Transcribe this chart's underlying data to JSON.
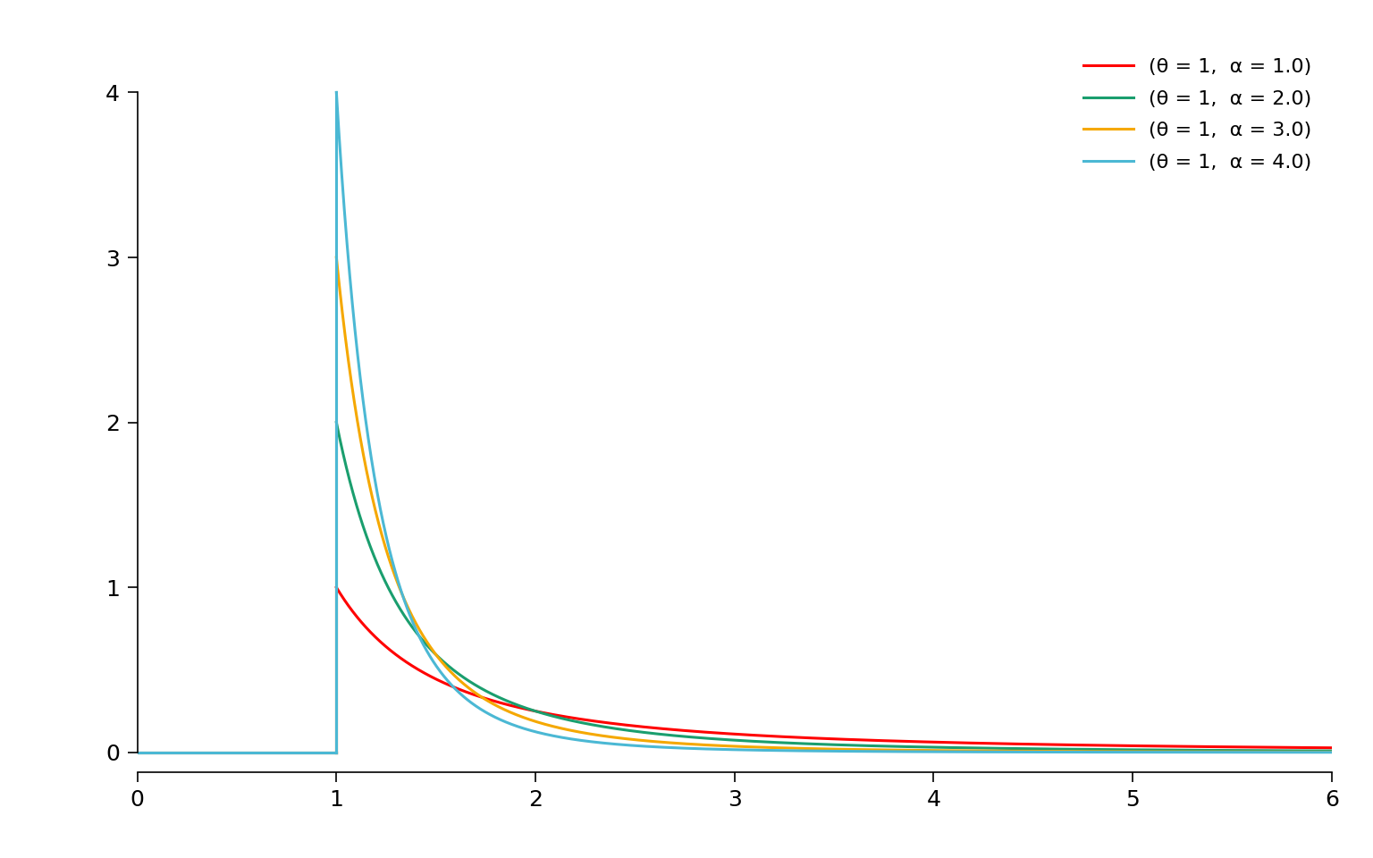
{
  "theta": 1,
  "alphas": [
    1.0,
    2.0,
    3.0,
    4.0
  ],
  "colors": [
    "#FF0000",
    "#1A9E6E",
    "#F5A800",
    "#4BB8D4"
  ],
  "xlim": [
    0,
    6
  ],
  "ylim": [
    -0.12,
    4.3
  ],
  "xticks": [
    0,
    1,
    2,
    3,
    4,
    5,
    6
  ],
  "yticks": [
    0,
    1,
    2,
    3,
    4
  ],
  "legend_labels": [
    "(θ = 1,  α = 1.0)",
    "(θ = 1,  α = 2.0)",
    "(θ = 1,  α = 3.0)",
    "(θ = 1,  α = 4.0)"
  ],
  "linewidth": 2.2,
  "background_color": "#FFFFFF",
  "n_points": 3000,
  "tick_fontsize": 18,
  "legend_fontsize": 16
}
